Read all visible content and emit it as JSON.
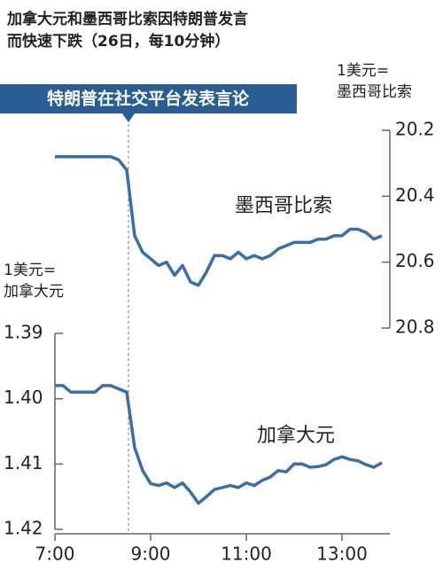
{
  "title": [
    "加拿大元和墨西哥比索因特朗普发言",
    "而快速下跌（26日，每10分钟）"
  ],
  "annotation": "特朗普在社交平台发表言论",
  "chart_data": [
    {
      "type": "line",
      "y_unit": [
        "1美元=",
        "墨西哥比索"
      ],
      "y_axis_side": "right",
      "y_inverted": true,
      "ylim": [
        20.2,
        20.8
      ],
      "yticks": [
        {
          "value": 20.2,
          "label": "20.2"
        },
        20.4,
        20.6,
        20.8
      ],
      "series_label": "墨西哥比索",
      "x": [
        "7:00",
        "7:10",
        "7:20",
        "7:30",
        "7:40",
        "7:50",
        "8:00",
        "8:10",
        "8:20",
        "8:30",
        "8:40",
        "8:50",
        "9:00",
        "9:10",
        "9:20",
        "9:30",
        "9:40",
        "9:50",
        "10:00",
        "10:10",
        "10:20",
        "10:30",
        "10:40",
        "10:50",
        "11:00",
        "11:10",
        "11:20",
        "11:30",
        "11:40",
        "11:50",
        "12:00",
        "12:10",
        "12:20",
        "12:30",
        "12:40",
        "12:50",
        "13:00",
        "13:10",
        "13:20",
        "13:30",
        "13:40",
        "13:50"
      ],
      "series": [
        {
          "name": "墨西哥比索",
          "color": "#3a6ea8",
          "values": [
            20.28,
            20.28,
            20.28,
            20.28,
            20.28,
            20.28,
            20.28,
            20.28,
            20.29,
            20.32,
            20.52,
            20.57,
            20.59,
            20.61,
            20.6,
            20.64,
            20.61,
            20.66,
            20.67,
            20.63,
            20.58,
            20.58,
            20.59,
            20.57,
            20.59,
            20.58,
            20.59,
            20.58,
            20.56,
            20.55,
            20.54,
            20.54,
            20.54,
            20.53,
            20.53,
            20.52,
            20.52,
            20.5,
            20.5,
            20.51,
            20.53,
            20.52
          ]
        }
      ]
    },
    {
      "type": "line",
      "y_unit": [
        "1美元=",
        "加拿大元"
      ],
      "y_axis_side": "left",
      "y_inverted": true,
      "ylim": [
        1.39,
        1.42
      ],
      "yticks": [
        1.39,
        {
          "value": 1.4,
          "label": "1.40"
        },
        1.41,
        1.42
      ],
      "series_label": "加拿大元",
      "x": [
        "7:00",
        "7:10",
        "7:20",
        "7:30",
        "7:40",
        "7:50",
        "8:00",
        "8:10",
        "8:20",
        "8:30",
        "8:40",
        "8:50",
        "9:00",
        "9:10",
        "9:20",
        "9:30",
        "9:40",
        "9:50",
        "10:00",
        "10:10",
        "10:20",
        "10:30",
        "10:40",
        "10:50",
        "11:00",
        "11:10",
        "11:20",
        "11:30",
        "11:40",
        "11:50",
        "12:00",
        "12:10",
        "12:20",
        "12:30",
        "12:40",
        "12:50",
        "13:00",
        "13:10",
        "13:20",
        "13:30",
        "13:40",
        "13:50"
      ],
      "xticks": [
        "7:00",
        "9:00",
        "11:00",
        "13:00"
      ],
      "series": [
        {
          "name": "加拿大元",
          "color": "#3a6ea8",
          "values": [
            1.398,
            1.398,
            1.399,
            1.399,
            1.399,
            1.399,
            1.398,
            1.398,
            1.3985,
            1.399,
            1.4075,
            1.411,
            1.413,
            1.4133,
            1.4129,
            1.4136,
            1.4129,
            1.4143,
            1.416,
            1.415,
            1.4139,
            1.4136,
            1.4133,
            1.4136,
            1.4129,
            1.4133,
            1.4125,
            1.412,
            1.411,
            1.4112,
            1.41,
            1.41,
            1.4105,
            1.4104,
            1.4101,
            1.4093,
            1.4089,
            1.4093,
            1.4095,
            1.4101,
            1.4105,
            1.4098
          ]
        }
      ]
    }
  ]
}
